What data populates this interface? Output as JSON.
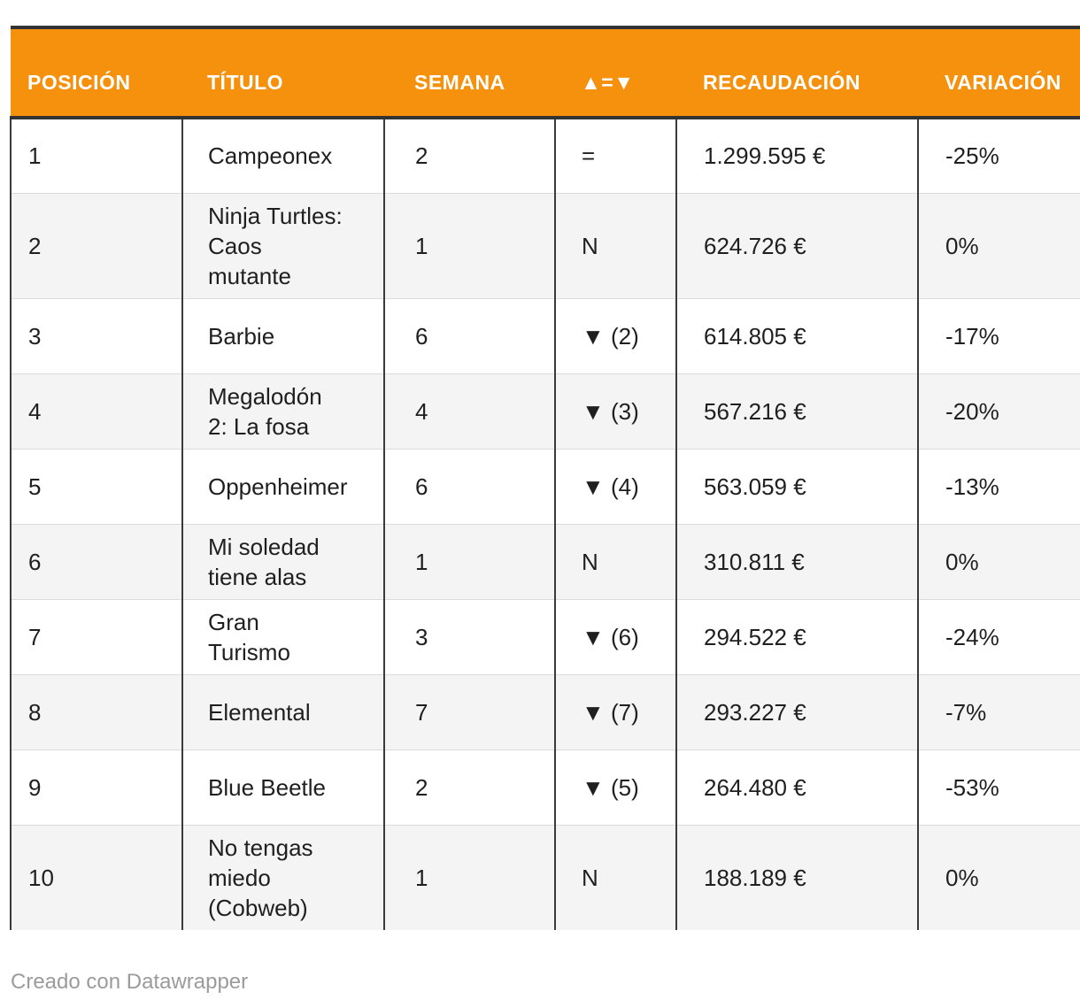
{
  "table": {
    "columns": [
      {
        "key": "posicion",
        "label": "POSICIÓN"
      },
      {
        "key": "titulo",
        "label": "TÍTULO"
      },
      {
        "key": "semana",
        "label": "SEMANA"
      },
      {
        "key": "tendencia",
        "label": "▲=▼"
      },
      {
        "key": "recaudacion",
        "label": "RECAUDACIÓN"
      },
      {
        "key": "variacion",
        "label": "VARIACIÓN"
      }
    ],
    "rows": [
      {
        "posicion": "1",
        "titulo": "Campeonex",
        "semana": "2",
        "tendencia": "=",
        "recaudacion": "1.299.595 €",
        "variacion": "-25%"
      },
      {
        "posicion": "2",
        "titulo": "Ninja Turtles:\nCaos\nmutante",
        "semana": "1",
        "tendencia": "N",
        "recaudacion": "624.726 €",
        "variacion": "0%"
      },
      {
        "posicion": "3",
        "titulo": "Barbie",
        "semana": "6",
        "tendencia": "▼ (2)",
        "recaudacion": "614.805 €",
        "variacion": "-17%"
      },
      {
        "posicion": "4",
        "titulo": "Megalodón\n2: La fosa",
        "semana": "4",
        "tendencia": "▼ (3)",
        "recaudacion": "567.216 €",
        "variacion": "-20%"
      },
      {
        "posicion": "5",
        "titulo": "Oppenheimer",
        "semana": "6",
        "tendencia": "▼ (4)",
        "recaudacion": "563.059 €",
        "variacion": "-13%"
      },
      {
        "posicion": "6",
        "titulo": "Mi soledad\ntiene alas",
        "semana": "1",
        "tendencia": "N",
        "recaudacion": "310.811 €",
        "variacion": "0%"
      },
      {
        "posicion": "7",
        "titulo": "Gran\nTurismo",
        "semana": "3",
        "tendencia": "▼ (6)",
        "recaudacion": "294.522 €",
        "variacion": "-24%"
      },
      {
        "posicion": "8",
        "titulo": "Elemental",
        "semana": "7",
        "tendencia": "▼ (7)",
        "recaudacion": "293.227 €",
        "variacion": "-7%"
      },
      {
        "posicion": "9",
        "titulo": "Blue Beetle",
        "semana": "2",
        "tendencia": "▼ (5)",
        "recaudacion": "264.480 €",
        "variacion": "-53%"
      },
      {
        "posicion": "10",
        "titulo": "No tengas\nmiedo\n(Cobweb)",
        "semana": "1",
        "tendencia": "N",
        "recaudacion": "188.189 €",
        "variacion": "0%"
      }
    ]
  },
  "footer": {
    "credit": "Creado con Datawrapper"
  },
  "colors": {
    "header_bg": "#f5910d",
    "header_text": "#ffffff",
    "dark_border": "#333333",
    "column_border": "#3a3a3a",
    "row_separator": "#dbdbdb",
    "alt_row_bg": "#f4f4f4",
    "body_text": "#1f1f1f",
    "footer_text": "#9b9b9b"
  }
}
